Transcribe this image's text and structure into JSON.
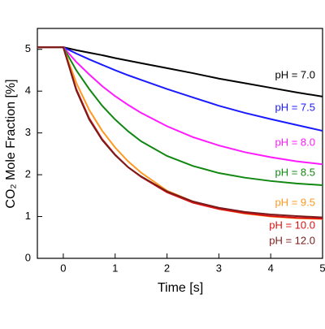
{
  "chart_data": {
    "type": "line",
    "xlabel": "Time [s]",
    "ylabel": "CO₂ Mole Fraction [%]",
    "x": [
      -0.5,
      0,
      0.25,
      0.5,
      0.75,
      1,
      1.25,
      1.5,
      2,
      2.5,
      3,
      3.5,
      4,
      4.5,
      5
    ],
    "series": [
      {
        "name": "pH = 7.0",
        "color": "#000000",
        "values": [
          5.05,
          5.05,
          4.98,
          4.92,
          4.86,
          4.79,
          4.73,
          4.67,
          4.55,
          4.43,
          4.3,
          4.19,
          4.08,
          3.97,
          3.87
        ]
      },
      {
        "name": "pH = 7.5",
        "color": "#1a1aff",
        "values": [
          5.05,
          5.05,
          4.9,
          4.76,
          4.63,
          4.5,
          4.38,
          4.27,
          4.05,
          3.85,
          3.65,
          3.48,
          3.33,
          3.19,
          3.05
        ]
      },
      {
        "name": "pH = 8.0",
        "color": "#ff1aff",
        "values": [
          5.05,
          5.05,
          4.7,
          4.4,
          4.12,
          3.88,
          3.67,
          3.48,
          3.16,
          2.9,
          2.7,
          2.54,
          2.42,
          2.32,
          2.25
        ]
      },
      {
        "name": "pH = 8.5",
        "color": "#118811",
        "values": [
          5.05,
          5.05,
          4.5,
          4.05,
          3.65,
          3.32,
          3.04,
          2.8,
          2.45,
          2.21,
          2.04,
          1.93,
          1.85,
          1.79,
          1.75
        ]
      },
      {
        "name": "pH = 9.5",
        "color": "#ff9922",
        "values": [
          5.05,
          5.05,
          4.2,
          3.55,
          3.05,
          2.65,
          2.32,
          2.05,
          1.62,
          1.36,
          1.18,
          1.07,
          1.0,
          0.96,
          0.94
        ]
      },
      {
        "name": "pH = 10.0",
        "color": "#dd1111",
        "values": [
          5.05,
          5.05,
          4.05,
          3.35,
          2.85,
          2.48,
          2.18,
          1.95,
          1.58,
          1.33,
          1.18,
          1.08,
          1.01,
          0.97,
          0.95
        ]
      },
      {
        "name": "pH = 12.0",
        "color": "#7a1c1c",
        "values": [
          5.05,
          5.05,
          4.02,
          3.32,
          2.83,
          2.47,
          2.18,
          1.96,
          1.6,
          1.36,
          1.21,
          1.11,
          1.05,
          1.01,
          0.98
        ]
      }
    ],
    "xlim": [
      -0.5,
      5
    ],
    "xticks": [
      0,
      1,
      2,
      3,
      4,
      5
    ],
    "ylim": [
      0,
      5.5
    ],
    "yticks": [
      0,
      1,
      2,
      3,
      4,
      5
    ]
  }
}
